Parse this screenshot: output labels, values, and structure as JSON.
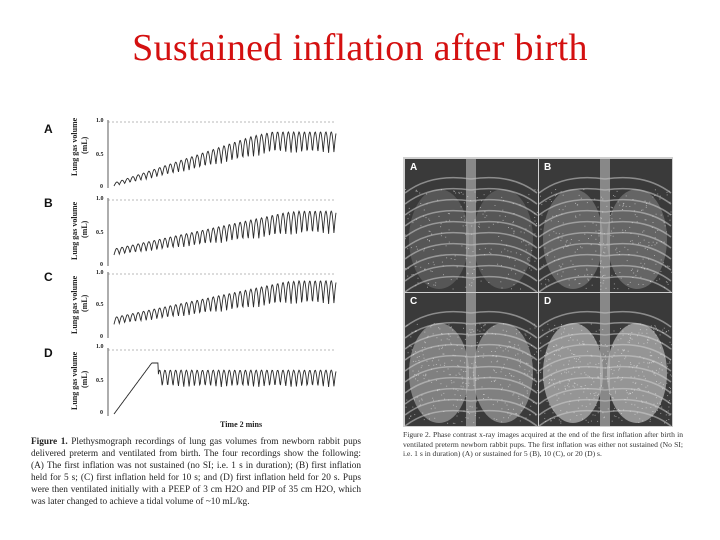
{
  "slide": {
    "title": "Sustained inflation after birth"
  },
  "figure1": {
    "panels": [
      {
        "letter": "A",
        "ylabel_line1": "Lung gas volume",
        "ylabel_line2": "(mL)"
      },
      {
        "letter": "B",
        "ylabel_line1": "Lung gas volume",
        "ylabel_line2": "(mL)"
      },
      {
        "letter": "C",
        "ylabel_line1": "Lung gas volume",
        "ylabel_line2": "(mL)"
      },
      {
        "letter": "D",
        "ylabel_line1": "Lung gas volume",
        "ylabel_line2": "(mL)"
      }
    ],
    "ytick_top": "1.0",
    "ytick_mid": "0.5",
    "ytick_bottom": "0",
    "xlabel": "Time 2 mins",
    "caption_bold": "Figure 1.",
    "caption_text": " Plethysmograph recordings of lung gas volumes from newborn rabbit pups delivered preterm and ventilated from birth. The four recordings show the following: (A) The first inflation was not sustained (no SI; i.e. 1 s in duration); (B) first inflation held for 5 s; (C) first inflation held for 10 s; and (D) first inflation held for 20 s. Pups were then ventilated initially with a PEEP of 3 cm H2O and PIP of 35 cm H2O, which was later changed to achieve a tidal volume of ~10 mL/kg."
  },
  "figure2": {
    "panels": [
      {
        "letter": "A"
      },
      {
        "letter": "B"
      },
      {
        "letter": "C"
      },
      {
        "letter": "D"
      }
    ],
    "caption": "Figure 2. Phase contrast x-ray images acquired at the end of the first inflation after birth in ventilated preterm newborn rabbit pups. The first inflation was either not sustained (No SI; i.e. 1 s in duration) (A) or sustained for 5 (B), 10 (C), or 20 (D) s."
  },
  "colors": {
    "title": "#d41010",
    "trace": "#2a2a2a"
  }
}
